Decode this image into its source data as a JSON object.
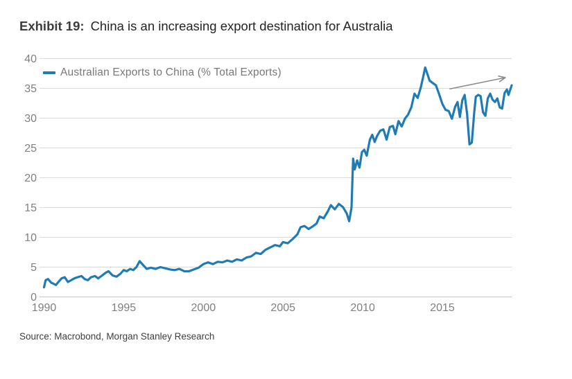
{
  "title": {
    "label": "Exhibit 19:",
    "text": "China is an increasing export destination for Australia"
  },
  "legend": {
    "label": "Australian Exports to China (% Total Exports)"
  },
  "source": "Source: Macrobond, Morgan Stanley Research",
  "colors": {
    "line": "#1F7BB4",
    "grid": "#D9D9D9",
    "baseline": "#C4C4C4",
    "axis_text": "#7F7F7F",
    "legend_text": "#787878",
    "arrow": "#8A8A8A"
  },
  "chart_data": {
    "type": "line",
    "title": "Exhibit 19: China is an increasing export destination for Australia",
    "xlabel": "",
    "ylabel": "",
    "xlim": [
      1990,
      2019.35
    ],
    "ylim": [
      0,
      40
    ],
    "x_ticks": [
      1990,
      1995,
      2000,
      2005,
      2010,
      2015
    ],
    "y_ticks": [
      0,
      5,
      10,
      15,
      20,
      25,
      30,
      35,
      40
    ],
    "grid": "horizontal",
    "legend_position": "top-left",
    "annotation": {
      "type": "arrow",
      "from_x": 2015.45,
      "from_y": 34.9,
      "to_x": 2018.95,
      "to_y": 36.8
    },
    "series": [
      {
        "name": "Australian Exports to China (% Total Exports)",
        "points": [
          [
            1990.0,
            1.6
          ],
          [
            1990.1,
            2.8
          ],
          [
            1990.25,
            3.0
          ],
          [
            1990.45,
            2.4
          ],
          [
            1990.6,
            2.2
          ],
          [
            1990.75,
            2.0
          ],
          [
            1990.9,
            2.5
          ],
          [
            1991.1,
            3.1
          ],
          [
            1991.3,
            3.3
          ],
          [
            1991.5,
            2.5
          ],
          [
            1991.7,
            2.8
          ],
          [
            1991.9,
            3.1
          ],
          [
            1992.1,
            3.3
          ],
          [
            1992.35,
            3.5
          ],
          [
            1992.55,
            3.0
          ],
          [
            1992.75,
            2.8
          ],
          [
            1992.95,
            3.3
          ],
          [
            1993.2,
            3.5
          ],
          [
            1993.4,
            3.1
          ],
          [
            1993.6,
            3.5
          ],
          [
            1993.9,
            4.1
          ],
          [
            1994.05,
            4.3
          ],
          [
            1994.3,
            3.6
          ],
          [
            1994.55,
            3.4
          ],
          [
            1994.8,
            3.9
          ],
          [
            1995.0,
            4.5
          ],
          [
            1995.2,
            4.3
          ],
          [
            1995.4,
            4.7
          ],
          [
            1995.6,
            4.5
          ],
          [
            1995.8,
            5.0
          ],
          [
            1996.0,
            6.0
          ],
          [
            1996.2,
            5.4
          ],
          [
            1996.45,
            4.7
          ],
          [
            1996.7,
            4.9
          ],
          [
            1997.0,
            4.7
          ],
          [
            1997.3,
            5.0
          ],
          [
            1997.6,
            4.8
          ],
          [
            1997.9,
            4.6
          ],
          [
            1998.2,
            4.5
          ],
          [
            1998.5,
            4.7
          ],
          [
            1998.8,
            4.3
          ],
          [
            1999.1,
            4.3
          ],
          [
            1999.4,
            4.6
          ],
          [
            1999.7,
            4.9
          ],
          [
            2000.0,
            5.5
          ],
          [
            2000.3,
            5.8
          ],
          [
            2000.6,
            5.5
          ],
          [
            2000.9,
            5.9
          ],
          [
            2001.2,
            5.8
          ],
          [
            2001.5,
            6.1
          ],
          [
            2001.8,
            5.9
          ],
          [
            2002.1,
            6.3
          ],
          [
            2002.4,
            6.1
          ],
          [
            2002.7,
            6.6
          ],
          [
            2003.0,
            6.8
          ],
          [
            2003.3,
            7.4
          ],
          [
            2003.6,
            7.2
          ],
          [
            2003.9,
            7.9
          ],
          [
            2004.2,
            8.3
          ],
          [
            2004.5,
            8.7
          ],
          [
            2004.8,
            8.5
          ],
          [
            2005.0,
            9.2
          ],
          [
            2005.3,
            9.0
          ],
          [
            2005.6,
            9.7
          ],
          [
            2005.9,
            10.5
          ],
          [
            2006.1,
            11.7
          ],
          [
            2006.35,
            11.9
          ],
          [
            2006.6,
            11.4
          ],
          [
            2006.85,
            11.8
          ],
          [
            2007.1,
            12.3
          ],
          [
            2007.3,
            13.5
          ],
          [
            2007.55,
            13.2
          ],
          [
            2007.8,
            14.3
          ],
          [
            2008.0,
            15.4
          ],
          [
            2008.25,
            14.7
          ],
          [
            2008.5,
            15.6
          ],
          [
            2008.75,
            15.1
          ],
          [
            2009.0,
            14.0
          ],
          [
            2009.15,
            12.7
          ],
          [
            2009.3,
            15.0
          ],
          [
            2009.4,
            23.2
          ],
          [
            2009.5,
            21.4
          ],
          [
            2009.65,
            22.9
          ],
          [
            2009.8,
            21.7
          ],
          [
            2009.95,
            24.3
          ],
          [
            2010.1,
            24.7
          ],
          [
            2010.25,
            23.7
          ],
          [
            2010.45,
            26.4
          ],
          [
            2010.6,
            27.2
          ],
          [
            2010.75,
            26.0
          ],
          [
            2010.9,
            27.0
          ],
          [
            2011.1,
            27.9
          ],
          [
            2011.3,
            28.1
          ],
          [
            2011.5,
            26.4
          ],
          [
            2011.7,
            28.5
          ],
          [
            2011.9,
            28.7
          ],
          [
            2012.05,
            27.3
          ],
          [
            2012.25,
            29.5
          ],
          [
            2012.45,
            28.6
          ],
          [
            2012.65,
            29.9
          ],
          [
            2012.85,
            30.6
          ],
          [
            2013.05,
            31.8
          ],
          [
            2013.25,
            34.1
          ],
          [
            2013.45,
            33.4
          ],
          [
            2013.65,
            35.2
          ],
          [
            2013.8,
            37.0
          ],
          [
            2013.92,
            38.5
          ],
          [
            2014.05,
            37.5
          ],
          [
            2014.2,
            36.3
          ],
          [
            2014.4,
            35.9
          ],
          [
            2014.6,
            35.5
          ],
          [
            2014.8,
            34.0
          ],
          [
            2015.0,
            32.4
          ],
          [
            2015.2,
            31.4
          ],
          [
            2015.4,
            31.2
          ],
          [
            2015.6,
            29.9
          ],
          [
            2015.8,
            31.9
          ],
          [
            2015.95,
            32.7
          ],
          [
            2016.1,
            30.2
          ],
          [
            2016.25,
            33.0
          ],
          [
            2016.4,
            33.9
          ],
          [
            2016.55,
            30.7
          ],
          [
            2016.7,
            25.6
          ],
          [
            2016.85,
            25.9
          ],
          [
            2017.0,
            31.0
          ],
          [
            2017.1,
            33.6
          ],
          [
            2017.25,
            33.9
          ],
          [
            2017.4,
            33.7
          ],
          [
            2017.55,
            31.0
          ],
          [
            2017.7,
            30.4
          ],
          [
            2017.85,
            33.3
          ],
          [
            2018.0,
            34.1
          ],
          [
            2018.15,
            33.1
          ],
          [
            2018.3,
            32.7
          ],
          [
            2018.45,
            33.3
          ],
          [
            2018.6,
            31.8
          ],
          [
            2018.75,
            31.6
          ],
          [
            2018.9,
            34.2
          ],
          [
            2019.05,
            34.8
          ],
          [
            2019.15,
            33.9
          ],
          [
            2019.25,
            34.7
          ],
          [
            2019.35,
            35.5
          ]
        ]
      }
    ]
  }
}
